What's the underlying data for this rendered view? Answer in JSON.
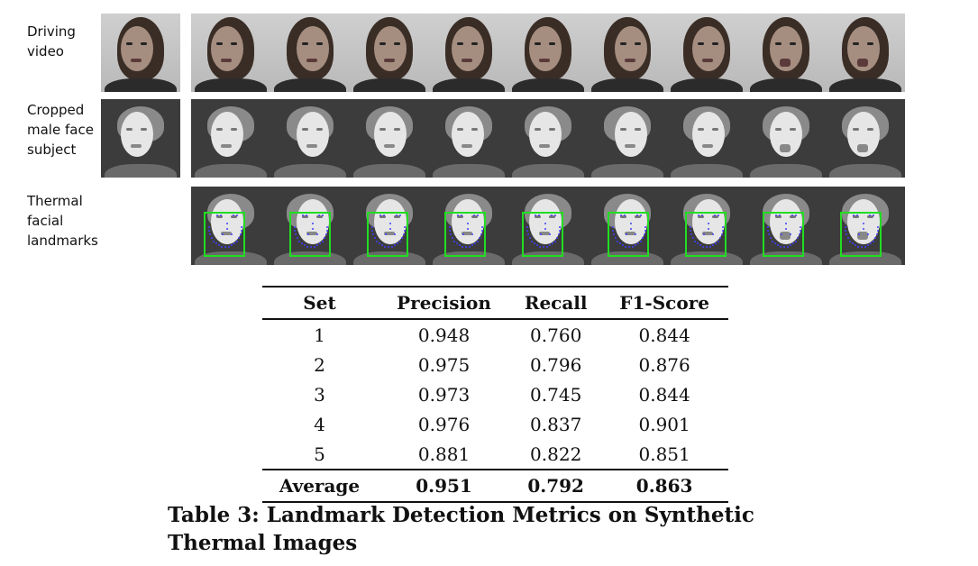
{
  "figure": {
    "row_labels": [
      "Driving\nvideo",
      "Cropped\nmale face\nsubject",
      "Thermal\nfacial\nlandmarks"
    ]
  },
  "table": {
    "headers": [
      "Set",
      "Precision",
      "Recall",
      "F1-Score"
    ],
    "rows": [
      [
        "1",
        "0.948",
        "0.760",
        "0.844"
      ],
      [
        "2",
        "0.975",
        "0.796",
        "0.876"
      ],
      [
        "3",
        "0.973",
        "0.745",
        "0.844"
      ],
      [
        "4",
        "0.976",
        "0.837",
        "0.901"
      ],
      [
        "5",
        "0.881",
        "0.822",
        "0.851"
      ]
    ],
    "average": [
      "Average",
      "0.951",
      "0.792",
      "0.863"
    ]
  },
  "caption": "Table 3: Landmark Detection Metrics on Synthetic Thermal Images"
}
